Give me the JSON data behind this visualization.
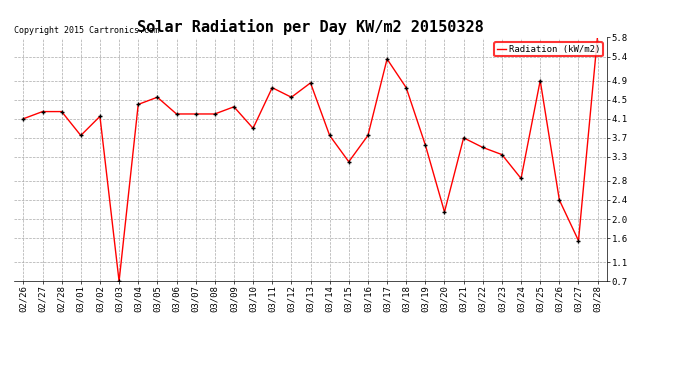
{
  "title": "Solar Radiation per Day KW/m2 20150328",
  "copyright": "Copyright 2015 Cartronics.com",
  "legend_label": "Radiation (kW/m2)",
  "dates": [
    "02/26",
    "02/27",
    "02/28",
    "03/01",
    "03/02",
    "03/03",
    "03/04",
    "03/05",
    "03/06",
    "03/07",
    "03/08",
    "03/09",
    "03/10",
    "03/11",
    "03/12",
    "03/13",
    "03/14",
    "03/15",
    "03/16",
    "03/17",
    "03/18",
    "03/19",
    "03/20",
    "03/21",
    "03/22",
    "03/23",
    "03/24",
    "03/25",
    "03/26",
    "03/27",
    "03/28"
  ],
  "values": [
    4.1,
    4.25,
    4.25,
    3.75,
    4.15,
    0.7,
    4.4,
    4.55,
    4.2,
    4.2,
    4.2,
    4.35,
    3.9,
    4.75,
    4.55,
    4.85,
    3.75,
    3.2,
    3.75,
    5.35,
    4.75,
    3.55,
    2.15,
    3.7,
    3.5,
    3.35,
    2.85,
    4.9,
    2.4,
    1.55,
    5.85
  ],
  "ylim": [
    0.7,
    5.8
  ],
  "yticks": [
    0.7,
    1.1,
    1.6,
    2.0,
    2.4,
    2.8,
    3.3,
    3.7,
    4.1,
    4.5,
    4.9,
    5.4,
    5.8
  ],
  "line_color": "red",
  "marker_color": "black",
  "bg_color": "#ffffff",
  "grid_color": "#aaaaaa",
  "title_fontsize": 11,
  "tick_fontsize": 6.5,
  "copyright_fontsize": 6,
  "legend_fontsize": 6.5
}
